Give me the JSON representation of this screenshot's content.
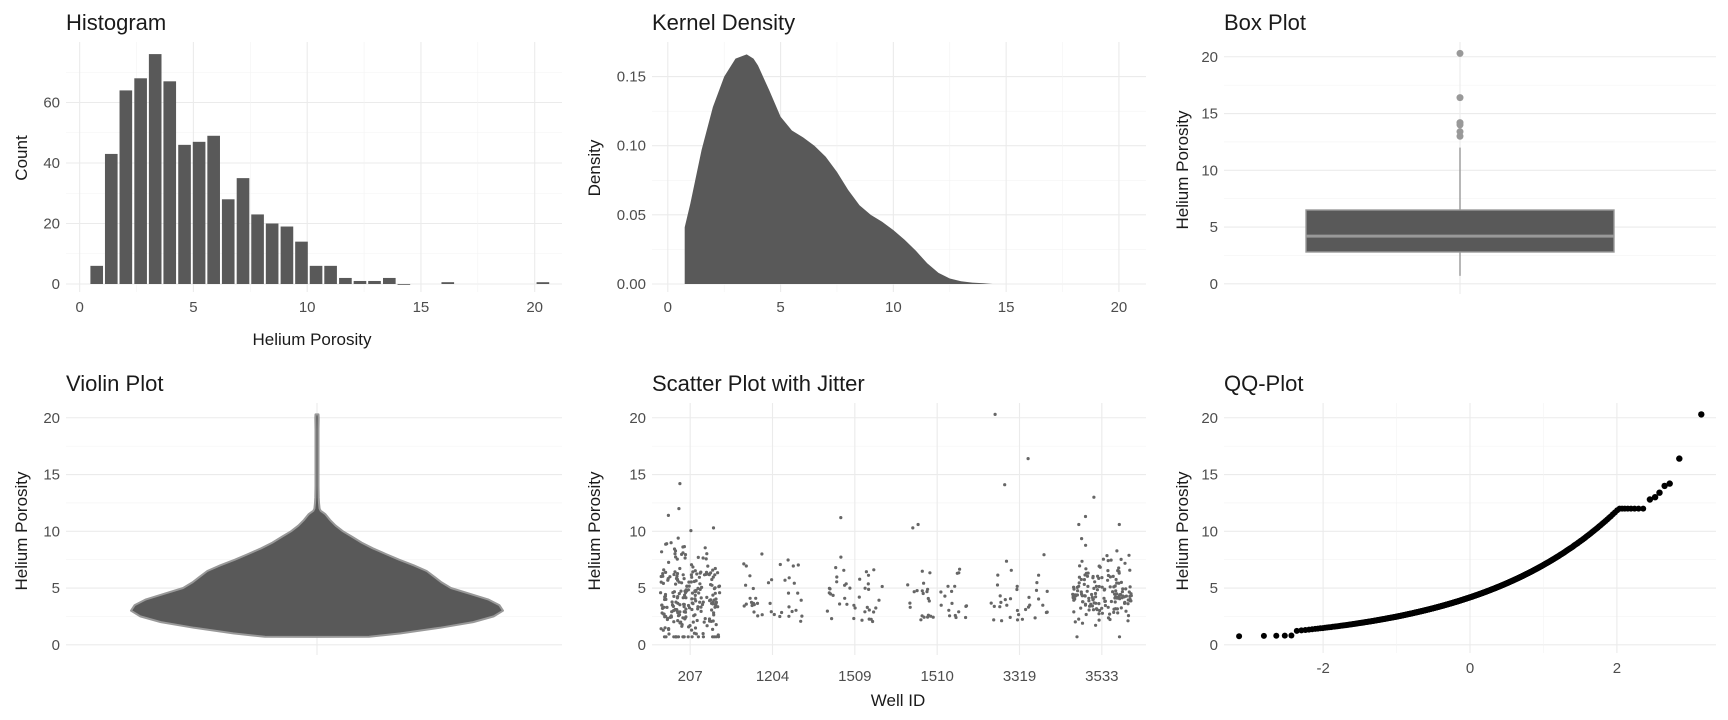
{
  "chart_data": [
    {
      "id": "hist",
      "type": "bar",
      "title": "Histogram",
      "xlabel": "Helium Porosity",
      "ylabel": "Count",
      "xlim": [
        -0.6,
        21.2
      ],
      "ylim": [
        0,
        80
      ],
      "xticks": [
        0,
        5,
        10,
        15,
        20
      ],
      "yticks": [
        0,
        20,
        40,
        60
      ],
      "bin_width": 0.643,
      "bin_centers": [
        0.75,
        1.39,
        2.03,
        2.68,
        3.32,
        3.96,
        4.61,
        5.25,
        5.89,
        6.53,
        7.18,
        7.82,
        8.46,
        9.11,
        9.75,
        10.39,
        11.03,
        11.68,
        12.32,
        12.96,
        13.61,
        14.25,
        16.18,
        20.36
      ],
      "values": [
        6,
        43,
        64,
        68,
        76,
        67,
        46,
        47,
        49,
        28,
        35,
        23,
        20,
        19,
        14,
        6,
        6,
        2,
        1,
        1,
        2,
        0,
        0.6,
        0.6
      ],
      "color": "#595959"
    },
    {
      "id": "kde",
      "type": "area",
      "title": "Kernel Density",
      "xlabel": "",
      "ylabel": "Density",
      "xlim": [
        -0.7,
        21.2
      ],
      "ylim": [
        0,
        0.175
      ],
      "xticks": [
        0,
        5,
        10,
        15,
        20
      ],
      "yticks": [
        0.0,
        0.05,
        0.1,
        0.15
      ],
      "ytick_labels": [
        "0.00",
        "0.05",
        "0.10",
        "0.15"
      ],
      "x": [
        0.75,
        1.0,
        1.5,
        2.0,
        2.5,
        3.0,
        3.5,
        3.8,
        4.0,
        4.5,
        5.0,
        5.5,
        6.0,
        6.5,
        7.0,
        7.5,
        8.0,
        8.5,
        9.0,
        9.5,
        10.0,
        10.5,
        11.0,
        11.5,
        12.0,
        12.5,
        13.0,
        13.5,
        14.0,
        14.4
      ],
      "y": [
        0.041,
        0.058,
        0.097,
        0.128,
        0.15,
        0.163,
        0.166,
        0.163,
        0.158,
        0.14,
        0.121,
        0.111,
        0.106,
        0.1,
        0.092,
        0.081,
        0.068,
        0.057,
        0.05,
        0.045,
        0.039,
        0.032,
        0.024,
        0.015,
        0.008,
        0.004,
        0.002,
        0.001,
        0.0005,
        0
      ],
      "color": "#595959"
    },
    {
      "id": "box",
      "type": "box",
      "title": "Box Plot",
      "xlabel": "",
      "ylabel": "Helium Porosity",
      "ylim": [
        -0.9,
        21.3
      ],
      "yticks": [
        0,
        5,
        10,
        15,
        20
      ],
      "stats": {
        "min": 0.7,
        "q1": 2.8,
        "median": 4.2,
        "q3": 6.5,
        "max": 12.0
      },
      "outliers": [
        13.0,
        13.4,
        14.0,
        14.2,
        16.4,
        20.3
      ],
      "color": "#595959",
      "line_color": "#999999"
    },
    {
      "id": "violin",
      "type": "violin",
      "title": "Violin Plot",
      "xlabel": "",
      "ylabel": "Helium Porosity",
      "ylim": [
        -0.9,
        21.3
      ],
      "yticks": [
        0,
        5,
        10,
        15,
        20
      ],
      "y": [
        0.7,
        1.0,
        1.5,
        2.0,
        2.5,
        3.0,
        3.5,
        4.0,
        4.5,
        5.0,
        5.5,
        6.0,
        6.5,
        7.0,
        7.5,
        8.0,
        8.5,
        9.0,
        9.5,
        10.0,
        10.5,
        11.0,
        11.5,
        11.8,
        12.0,
        12.5,
        13.0,
        14.0,
        15.0,
        16.0,
        17.0,
        18.0,
        19.0,
        20.0,
        20.3
      ],
      "density": [
        0.28,
        0.45,
        0.66,
        0.84,
        0.95,
        1.0,
        0.98,
        0.92,
        0.82,
        0.72,
        0.67,
        0.63,
        0.59,
        0.52,
        0.44,
        0.37,
        0.3,
        0.24,
        0.19,
        0.14,
        0.1,
        0.07,
        0.045,
        0.02,
        0.014,
        0.011,
        0.009,
        0.008,
        0.008,
        0.007,
        0.007,
        0.008,
        0.008,
        0.009,
        0.0
      ],
      "color": "#595959",
      "line_color": "#999999"
    },
    {
      "id": "scatter",
      "type": "scatter",
      "title": "Scatter Plot with Jitter",
      "xlabel": "Well ID",
      "ylabel": "Helium Porosity",
      "ylim": [
        -0.9,
        21.3
      ],
      "yticks": [
        0,
        5,
        10,
        15,
        20
      ],
      "categories": [
        "207",
        "1204",
        "1509",
        "1510",
        "3319",
        "3533"
      ],
      "counts": [
        240,
        40,
        40,
        40,
        35,
        165
      ],
      "highlights": [
        {
          "category": "207",
          "y": 14.2
        },
        {
          "category": "207",
          "y": 12.0
        },
        {
          "category": "207",
          "y": 11.4
        },
        {
          "category": "3319",
          "y": 20.3
        },
        {
          "category": "3319",
          "y": 16.4
        },
        {
          "category": "3319",
          "y": 14.1
        },
        {
          "category": "3533",
          "y": 13.0
        },
        {
          "category": "3533",
          "y": 11.3
        },
        {
          "category": "1204",
          "y": 8.0
        },
        {
          "category": "1509",
          "y": 11.2
        },
        {
          "category": "1510",
          "y": 10.3
        }
      ],
      "color": "#666666"
    },
    {
      "id": "qq",
      "type": "scatter",
      "title": "QQ-Plot",
      "xlabel": "",
      "ylabel": "Helium Porosity",
      "xlim": [
        -3.35,
        3.35
      ],
      "ylim": [
        -0.9,
        21.3
      ],
      "xticks": [
        -2,
        0,
        2
      ],
      "yticks": [
        0,
        5,
        10,
        15,
        20
      ],
      "n": 600,
      "outliers": [
        {
          "x": 2.45,
          "y": 12.8
        },
        {
          "x": 2.52,
          "y": 13.0
        },
        {
          "x": 2.58,
          "y": 13.4
        },
        {
          "x": 2.65,
          "y": 14.0
        },
        {
          "x": 2.72,
          "y": 14.2
        },
        {
          "x": 2.85,
          "y": 16.4
        },
        {
          "x": 3.15,
          "y": 20.3
        }
      ],
      "color": "#000000"
    }
  ]
}
